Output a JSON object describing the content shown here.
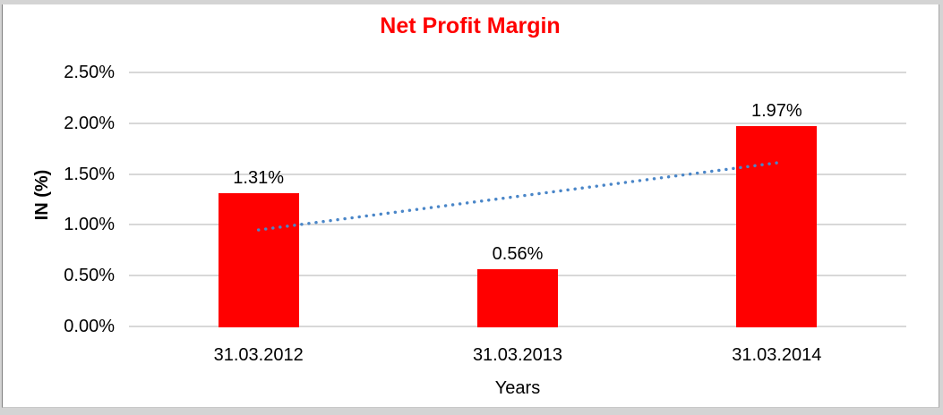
{
  "frame": {
    "background": "#d4d4d4",
    "border_left_color": "#7e7e7e",
    "border_right_color": "#a6a6a6",
    "border_bottom_color": "#c9c9c9",
    "canvas_background": "#ffffff"
  },
  "chart_data": {
    "type": "bar",
    "title": "Net Profit Margin",
    "title_color": "#ff0000",
    "categories": [
      "31.03.2012",
      "31.03.2013",
      "31.03.2014"
    ],
    "values": [
      1.31,
      0.56,
      1.97
    ],
    "data_labels": [
      "1.31%",
      "0.56%",
      "1.97%"
    ],
    "bar_color": "#ff0000",
    "xlabel": "Years",
    "ylabel": "IN (%)",
    "ylim": [
      0,
      2.5
    ],
    "yticks": [
      0,
      0.5,
      1,
      1.5,
      2,
      2.5
    ],
    "ytick_labels": [
      "0.00%",
      "0.50%",
      "1.00%",
      "1.50%",
      "2.00%",
      "2.50%"
    ],
    "grid": "horizontal",
    "gridline_color": "#d8d8d8",
    "legend": "none",
    "trendline": {
      "type": "linear",
      "style": "dotted",
      "color": "#4a86c8",
      "start": {
        "category_index": 0,
        "value": 0.95
      },
      "end": {
        "category_index": 2,
        "value": 1.61
      }
    }
  }
}
